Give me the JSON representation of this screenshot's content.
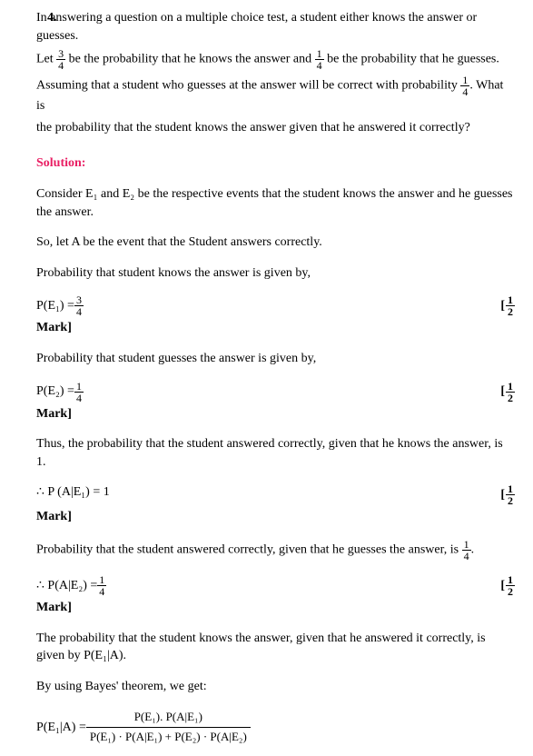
{
  "question": {
    "number": "4.",
    "line1_pre": "In answering a question on a multiple choice test, a student either knows the answer or guesses.",
    "line2_a": "Let ",
    "line2_b": " be the probability that he knows the answer and ",
    "line2_c": " be the probability that he guesses.",
    "line3_a": "Assuming that a student who guesses at the answer will be correct with probability ",
    "line3_b": ". What is",
    "line4": "the probability that the student knows the answer given that he answered it correctly?",
    "frac_3_4_num": "3",
    "frac_3_4_den": "4",
    "frac_1_4_num": "1",
    "frac_1_4_den": "4"
  },
  "solution": {
    "heading": "Solution:",
    "p1": "Consider E₁ and E₂ be the respective events that the student knows the answer and he guesses the answer.",
    "p2": "So, let A be the event that the Student answers correctly.",
    "p3": "Probability that student knows the answer is given by,",
    "eq1_lhs": "P(E₁) = ",
    "eq1_num": "3",
    "eq1_den": "4",
    "p4": "Probability that student guesses the answer is given by,",
    "eq2_lhs": "P(E₂) = ",
    "eq2_num": "1",
    "eq2_den": "4",
    "p5": "Thus, the probability that the student answered correctly, given that he knows the answer, is 1.",
    "eq3": "∴  P (A|E₁) = 1",
    "p6_a": "Probability that the student answered correctly, given that he guesses the answer, is ",
    "p6_b": ".",
    "p6_num": "1",
    "p6_den": "4",
    "eq4_lhs": "∴ P(A|E₂) = ",
    "eq4_num": "1",
    "eq4_den": "4",
    "p7": "The probability that the student knows the answer, given that he answered it correctly, is given by P(E₁|A).",
    "p8": "By using Bayes' theorem, we get:",
    "bayes_lhs": "P(E₁|A) = ",
    "bayes_num": "P(E₁). P(A|E₁)",
    "bayes_den": "P(E₁) · P(A|E₁) + P(E₂) · P(A|E₂)",
    "mark_label": "Mark]",
    "mark_whole": "[",
    "mark_num": "1",
    "mark_den": "2"
  }
}
